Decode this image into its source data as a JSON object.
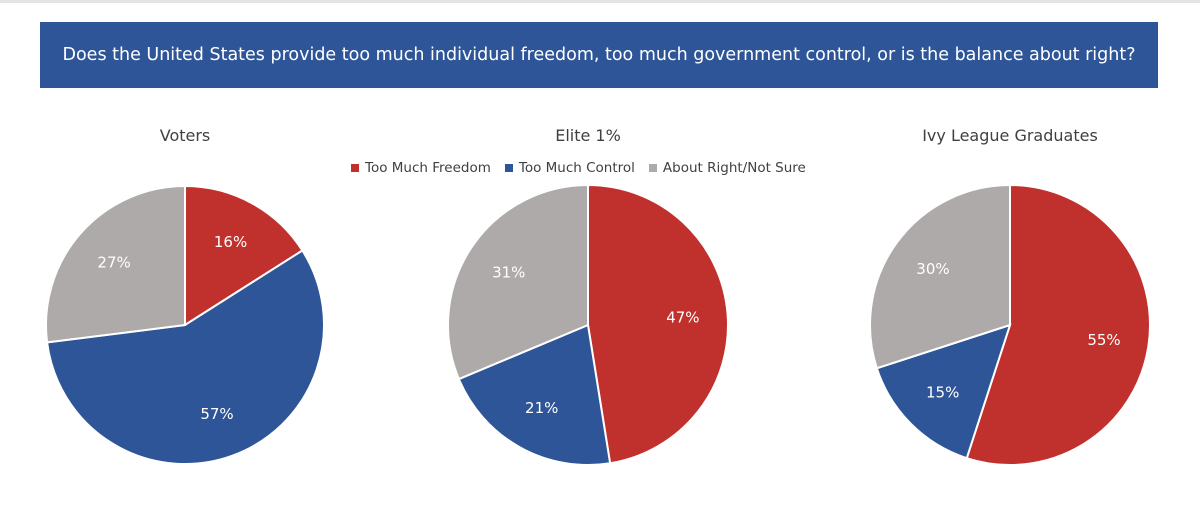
{
  "banner": {
    "title": "Does the United States provide too much individual freedom, too much government control, or is the balance about right?"
  },
  "chart_data": [
    {
      "type": "pie",
      "title": "Voters",
      "categories": [
        "Too Much Freedom",
        "Too Much Control",
        "About Right/Not Sure"
      ],
      "values": [
        16,
        57,
        27
      ],
      "labels": [
        "16%",
        "57%",
        "27%"
      ]
    },
    {
      "type": "pie",
      "title": "Elite 1%",
      "categories": [
        "Too Much Freedom",
        "Too Much Control",
        "About Right/Not Sure"
      ],
      "values": [
        47,
        21,
        31
      ],
      "labels": [
        "47%",
        "21%",
        "31%"
      ]
    },
    {
      "type": "pie",
      "title": "Ivy League Graduates",
      "categories": [
        "Too Much Freedom",
        "Too Much Control",
        "About Right/Not Sure"
      ],
      "values": [
        55,
        15,
        30
      ],
      "labels": [
        "55%",
        "15%",
        "30%"
      ]
    }
  ],
  "legend": {
    "items": [
      {
        "label": "Too Much Freedom",
        "color": "#c0312e"
      },
      {
        "label": "Too Much Control",
        "color": "#2e5597"
      },
      {
        "label": "About Right/Not Sure",
        "color": "#aeaaaa"
      }
    ]
  }
}
